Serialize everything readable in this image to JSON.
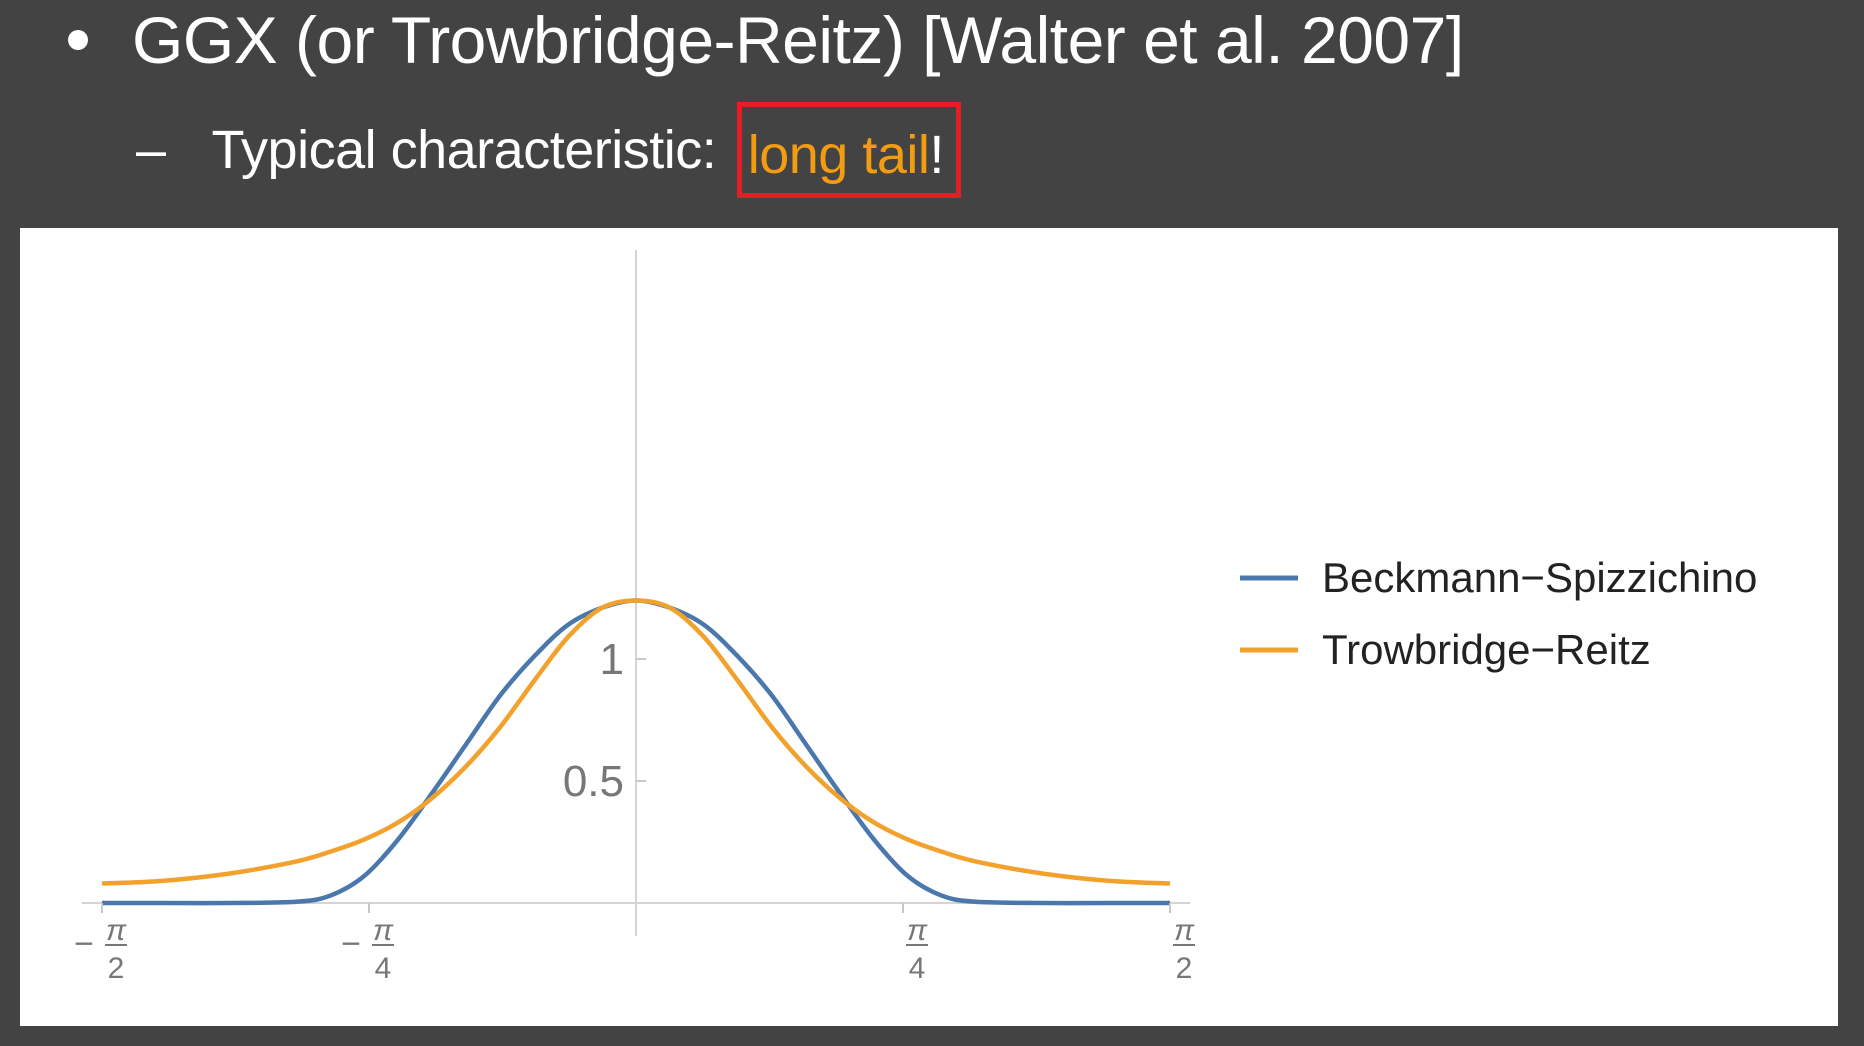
{
  "slide": {
    "bullet_text": "GGX (or Trowbridge-Reitz) [Walter et al. 2007]",
    "sub_dash": "–",
    "sub_prefix": "Typical characteristic: ",
    "sub_highlight": "long tail",
    "sub_suffix": "!",
    "colors": {
      "background": "#434343",
      "text": "#ffffff",
      "accent": "#f39c12",
      "box": "#e41e25"
    }
  },
  "chart_data": {
    "type": "line",
    "title": "",
    "xlabel": "",
    "ylabel": "",
    "xlim": [
      -1.5708,
      1.5708
    ],
    "ylim": [
      0,
      1.2
    ],
    "x_ticks": [
      {
        "value": -1.5708,
        "sign": "−",
        "num": "π",
        "den": "2"
      },
      {
        "value": -0.7854,
        "sign": "−",
        "num": "π",
        "den": "4"
      },
      {
        "value": 0.7854,
        "sign": "",
        "num": "π",
        "den": "4"
      },
      {
        "value": 1.5708,
        "sign": "",
        "num": "π",
        "den": "2"
      }
    ],
    "y_ticks": [
      {
        "value": 0.5,
        "label": "0.5"
      },
      {
        "value": 1,
        "label": "1"
      }
    ],
    "grid": false,
    "legend_position": "right",
    "series": [
      {
        "name": "Beckmann−Spizzichino",
        "color": "#4a78ad",
        "x": [
          -1.5708,
          -1.4,
          -1.2,
          -1.0,
          -0.9,
          -0.8,
          -0.7,
          -0.6,
          -0.5,
          -0.4,
          -0.3,
          -0.2,
          -0.1,
          0,
          0.1,
          0.2,
          0.3,
          0.4,
          0.5,
          0.6,
          0.7,
          0.8,
          0.9,
          1.0,
          1.2,
          1.4,
          1.5708
        ],
        "y": [
          0,
          0,
          0,
          0.005,
          0.03,
          0.11,
          0.26,
          0.45,
          0.65,
          0.85,
          1.01,
          1.14,
          1.21,
          1.24,
          1.21,
          1.14,
          1.01,
          0.85,
          0.65,
          0.45,
          0.26,
          0.11,
          0.03,
          0.005,
          0,
          0,
          0
        ]
      },
      {
        "name": "Trowbridge−Reitz",
        "color": "#f2a22c",
        "x": [
          -1.5708,
          -1.4,
          -1.2,
          -1.0,
          -0.9,
          -0.8,
          -0.7,
          -0.6,
          -0.5,
          -0.4,
          -0.3,
          -0.2,
          -0.1,
          0,
          0.1,
          0.2,
          0.3,
          0.4,
          0.5,
          0.6,
          0.7,
          0.8,
          0.9,
          1.0,
          1.2,
          1.4,
          1.5708
        ],
        "y": [
          0.08,
          0.09,
          0.12,
          0.17,
          0.21,
          0.26,
          0.33,
          0.43,
          0.56,
          0.72,
          0.91,
          1.09,
          1.21,
          1.24,
          1.21,
          1.09,
          0.91,
          0.72,
          0.56,
          0.43,
          0.33,
          0.26,
          0.21,
          0.17,
          0.12,
          0.09,
          0.08
        ]
      }
    ]
  }
}
